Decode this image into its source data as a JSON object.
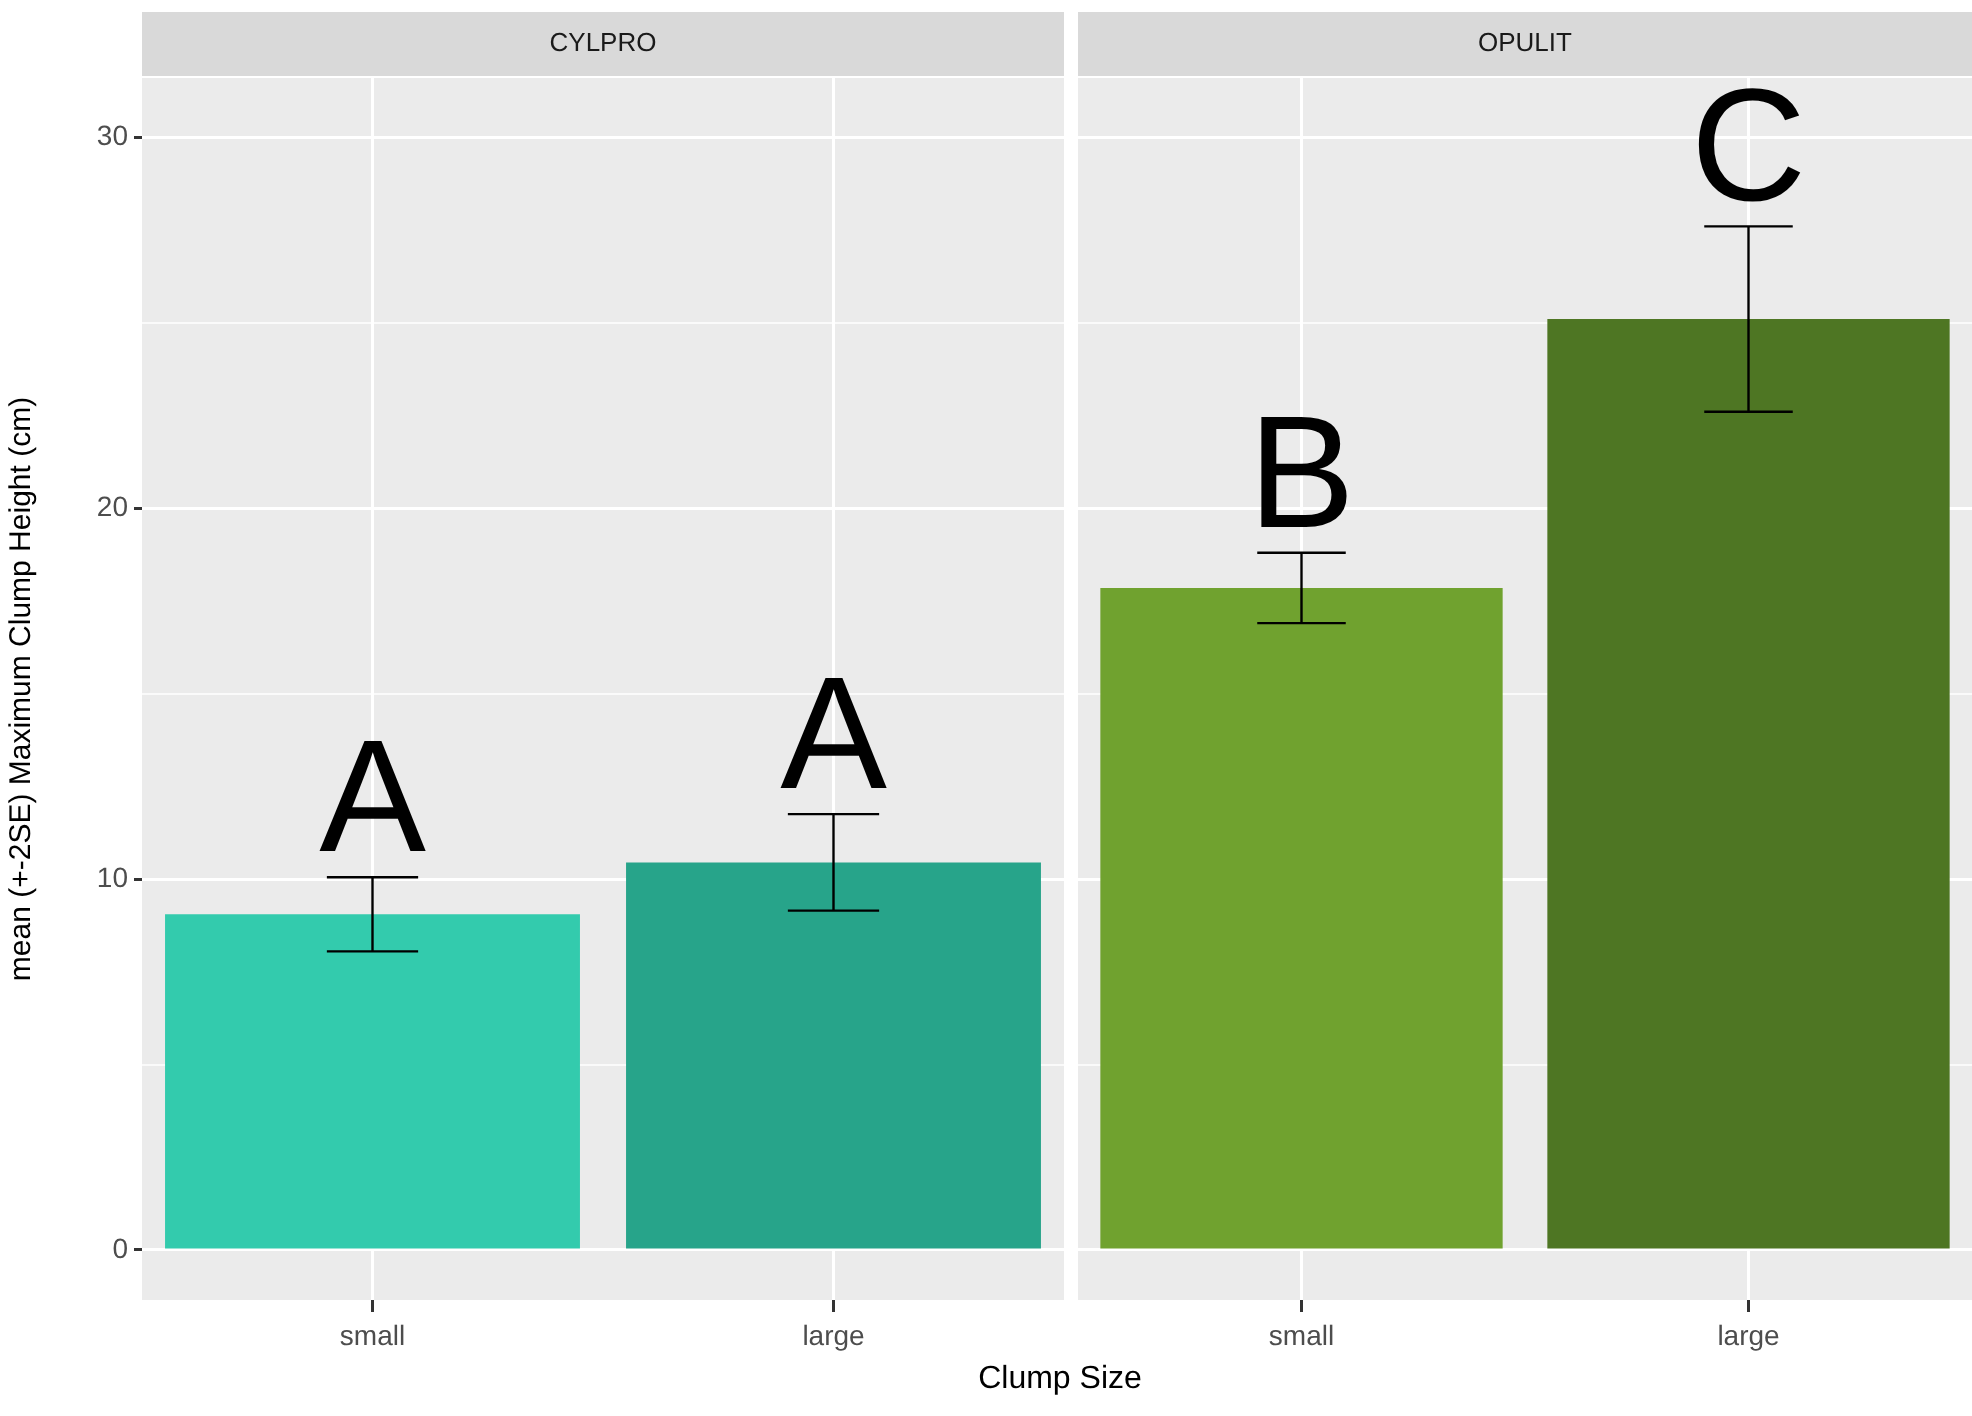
{
  "chart_data": [
    {
      "type": "bar",
      "title": "CYLPRO",
      "xlabel": "Clump Size",
      "ylabel": "mean (+-2SE) Maximum Clump Height (cm)",
      "categories": [
        "small",
        "large"
      ],
      "values": [
        9.05,
        10.45
      ],
      "errors": [
        1.0,
        1.3
      ],
      "colors": [
        "#33cbad",
        "#27a48a"
      ],
      "ylim": [
        -1.35,
        31.6
      ],
      "yticks": [
        0,
        {
          "value": 5,
          "label": null
        },
        10,
        {
          "value": 15,
          "label": null
        },
        20,
        {
          "value": 25,
          "label": null
        },
        30
      ],
      "grid": true,
      "annotations": [
        "A",
        "A"
      ]
    },
    {
      "type": "bar",
      "title": "OPULIT",
      "categories": [
        "small",
        "large"
      ],
      "values": [
        17.85,
        25.1
      ],
      "errors": [
        0.95,
        2.5
      ],
      "colors": [
        "#70a22f",
        "#4e7623"
      ],
      "ylim": [
        -1.35,
        31.6
      ],
      "yticks": [
        0,
        {
          "value": 5,
          "label": null
        },
        10,
        {
          "value": 15,
          "label": null
        },
        20,
        {
          "value": 25,
          "label": null
        },
        30
      ],
      "grid": true,
      "tick_labels": "x",
      "annotations": [
        "B",
        "C"
      ]
    }
  ]
}
